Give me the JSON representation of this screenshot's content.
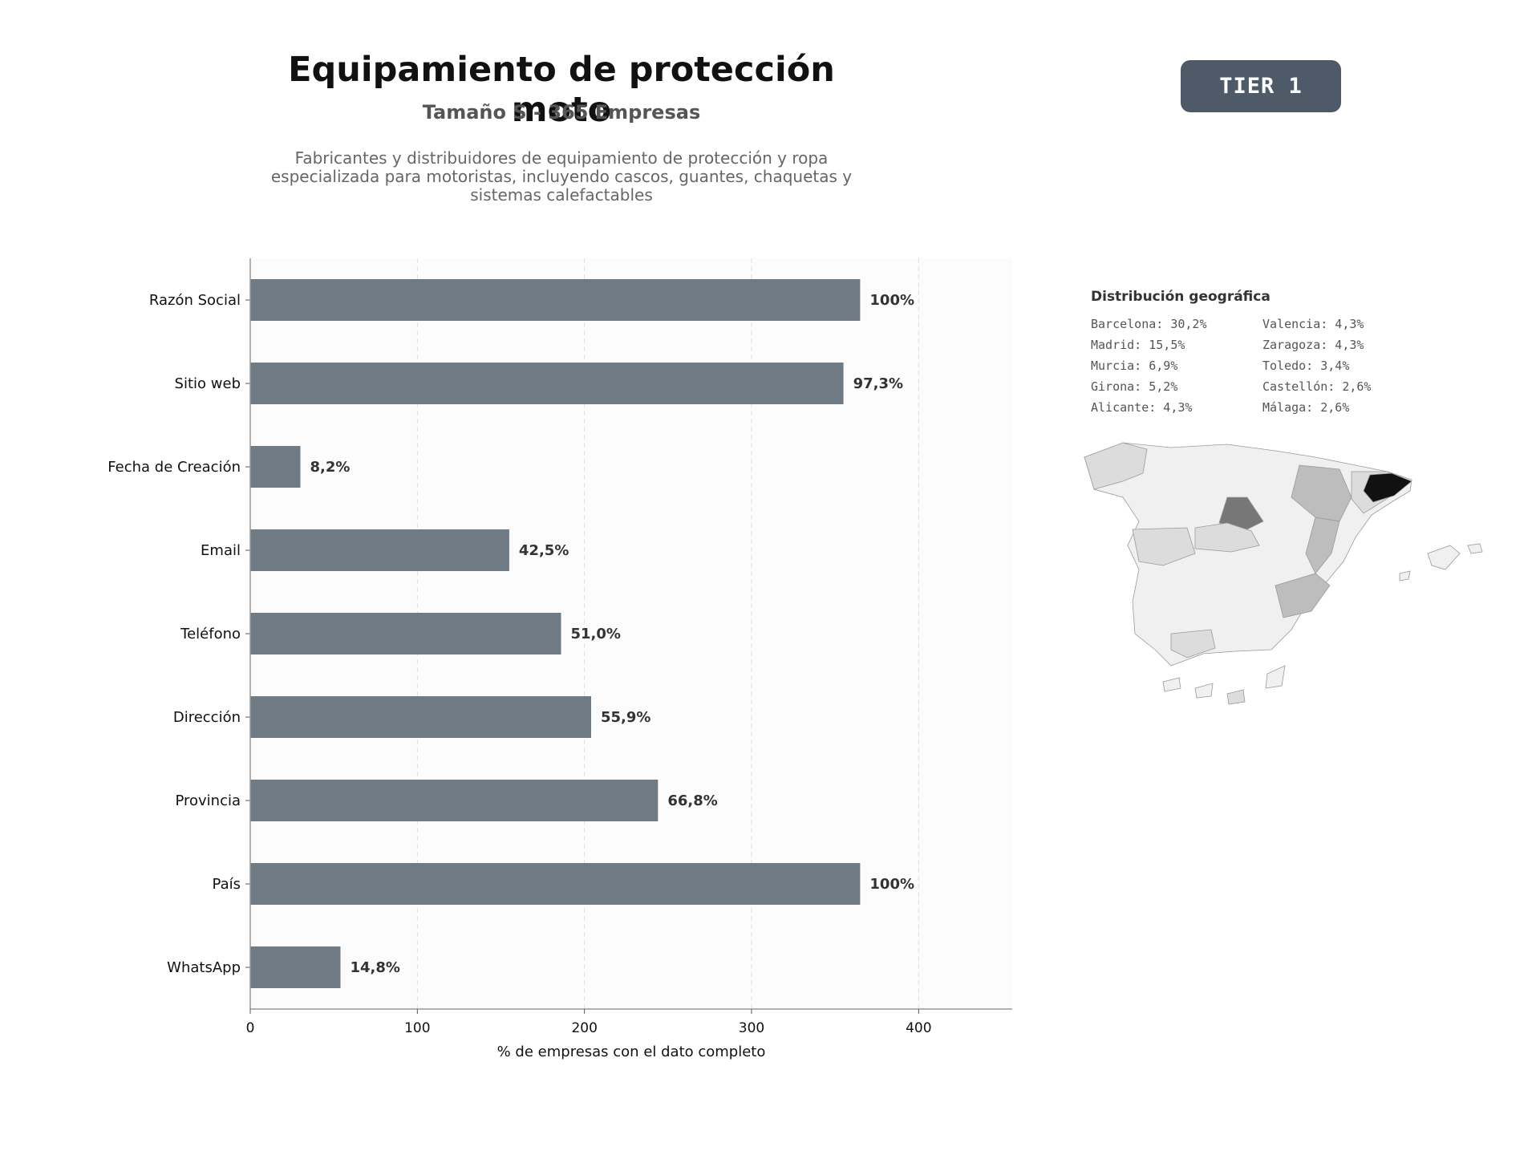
{
  "header": {
    "title": "Equipamiento de protección moto",
    "subtitle": "Tamaño S - 365 Empresas",
    "description": "Fabricantes y distribuidores de equipamiento de protección y ropa especializada para motoristas, incluyendo cascos, guantes, chaquetas y sistemas calefactables",
    "badge": "TIER 1"
  },
  "chart_data": {
    "type": "bar",
    "orientation": "horizontal",
    "categories": [
      "Razón Social",
      "Sitio web",
      "Fecha de Creación",
      "Email",
      "Teléfono",
      "Dirección",
      "Provincia",
      "País",
      "WhatsApp"
    ],
    "values": [
      365,
      355,
      30,
      155,
      186,
      204,
      244,
      365,
      54
    ],
    "data_labels": [
      "100%",
      "97,3%",
      "8,2%",
      "42,5%",
      "51,0%",
      "55,9%",
      "66,8%",
      "100%",
      "14,8%"
    ],
    "xlabel": "% de empresas con el dato completo",
    "ylabel": "",
    "xlim": [
      0,
      456
    ],
    "xticks": [
      0,
      100,
      200,
      300,
      400
    ],
    "grid": true,
    "colors": {
      "bar": "#6e7a84",
      "plot_bg": "#fcfcfc",
      "grid": "#e0e0e0",
      "axis": "#999999"
    }
  },
  "geo": {
    "title": "Distribución geográfica",
    "items": [
      "Barcelona: 30,2%",
      "Valencia: 4,3%",
      "Madrid: 15,5%",
      "Zaragoza: 4,3%",
      "Murcia: 6,9%",
      "Toledo: 3,4%",
      "Girona: 5,2%",
      "Castellón: 2,6%",
      "Alicante: 4,3%",
      "Málaga: 2,6%"
    ],
    "map_colors": {
      "barcelona": "#111111",
      "madrid": "#777777",
      "medium": "#bdbdbd",
      "light": "#dcdcdc",
      "base": "#f0f0f0",
      "stroke": "#9a9a9a"
    }
  }
}
